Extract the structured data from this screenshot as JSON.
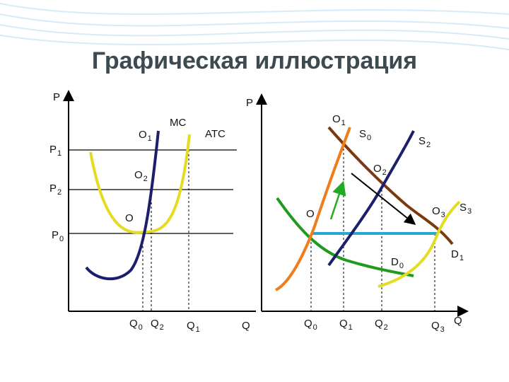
{
  "title": "Графическая иллюстрация",
  "left_graph": {
    "labels": [
      {
        "text": "P",
        "sub": ""
      },
      {
        "text": "MC",
        "sub": ""
      },
      {
        "text": "ATC",
        "sub": ""
      },
      {
        "text": "O",
        "sub": "1"
      },
      {
        "text": "O",
        "sub": "2"
      },
      {
        "text": "O",
        "sub": ""
      },
      {
        "text": "P",
        "sub": "1"
      },
      {
        "text": "P",
        "sub": "2"
      },
      {
        "text": "P",
        "sub": "0"
      },
      {
        "text": "Q",
        "sub": "0"
      },
      {
        "text": "Q",
        "sub": "2"
      },
      {
        "text": "Q",
        "sub": "1"
      },
      {
        "text": "Q",
        "sub": ""
      }
    ]
  },
  "right_graph": {
    "labels": [
      {
        "text": "P",
        "sub": ""
      },
      {
        "text": "O",
        "sub": "1"
      },
      {
        "text": "S",
        "sub": "0"
      },
      {
        "text": "S",
        "sub": "2"
      },
      {
        "text": "O",
        "sub": "2"
      },
      {
        "text": "O",
        "sub": "3"
      },
      {
        "text": "S",
        "sub": "3"
      },
      {
        "text": "O",
        "sub": ""
      },
      {
        "text": "D",
        "sub": "0"
      },
      {
        "text": "D",
        "sub": "1"
      },
      {
        "text": "Q",
        "sub": "0"
      },
      {
        "text": "Q",
        "sub": "1"
      },
      {
        "text": "Q",
        "sub": "2"
      },
      {
        "text": "Q",
        "sub": "3"
      },
      {
        "text": "Q",
        "sub": ""
      }
    ]
  }
}
